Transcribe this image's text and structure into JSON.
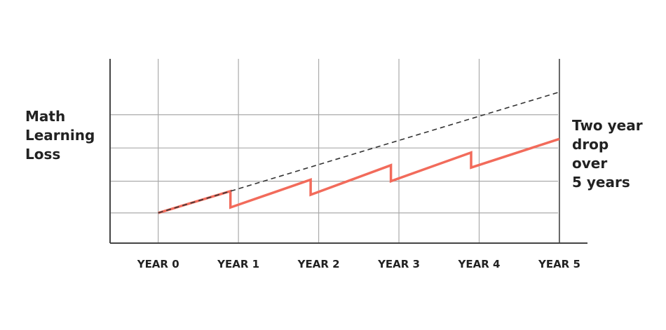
{
  "chart_data": {
    "type": "line",
    "title": "",
    "ylabel_lines": [
      "Math",
      "Learning",
      "Loss"
    ],
    "xlabel": "",
    "categories": [
      "YEAR 0",
      "YEAR 1",
      "YEAR 2",
      "YEAR 3",
      "YEAR 4",
      "YEAR 5"
    ],
    "annotation_lines": [
      "Two year",
      "drop",
      "over",
      "5 years"
    ],
    "grid": true,
    "xlim": [
      -0.6,
      5.35
    ],
    "ylim": [
      0,
      6.1
    ],
    "series": [
      {
        "style": "dashed",
        "color": "#333333",
        "points": [
          [
            0,
            1
          ],
          [
            5,
            5
          ]
        ]
      },
      {
        "style": "solid",
        "color": "#f26b5b",
        "points": [
          [
            0,
            1
          ],
          [
            0.9,
            1.72
          ],
          [
            0.9,
            1.18
          ],
          [
            1.9,
            2.1
          ],
          [
            1.9,
            1.6
          ],
          [
            2.9,
            2.58
          ],
          [
            2.9,
            2.05
          ],
          [
            3.9,
            3.0
          ],
          [
            3.9,
            2.5
          ],
          [
            5,
            3.45
          ]
        ]
      }
    ]
  },
  "colors": {
    "grid": "#aaaaaa",
    "axis": "#444444"
  }
}
